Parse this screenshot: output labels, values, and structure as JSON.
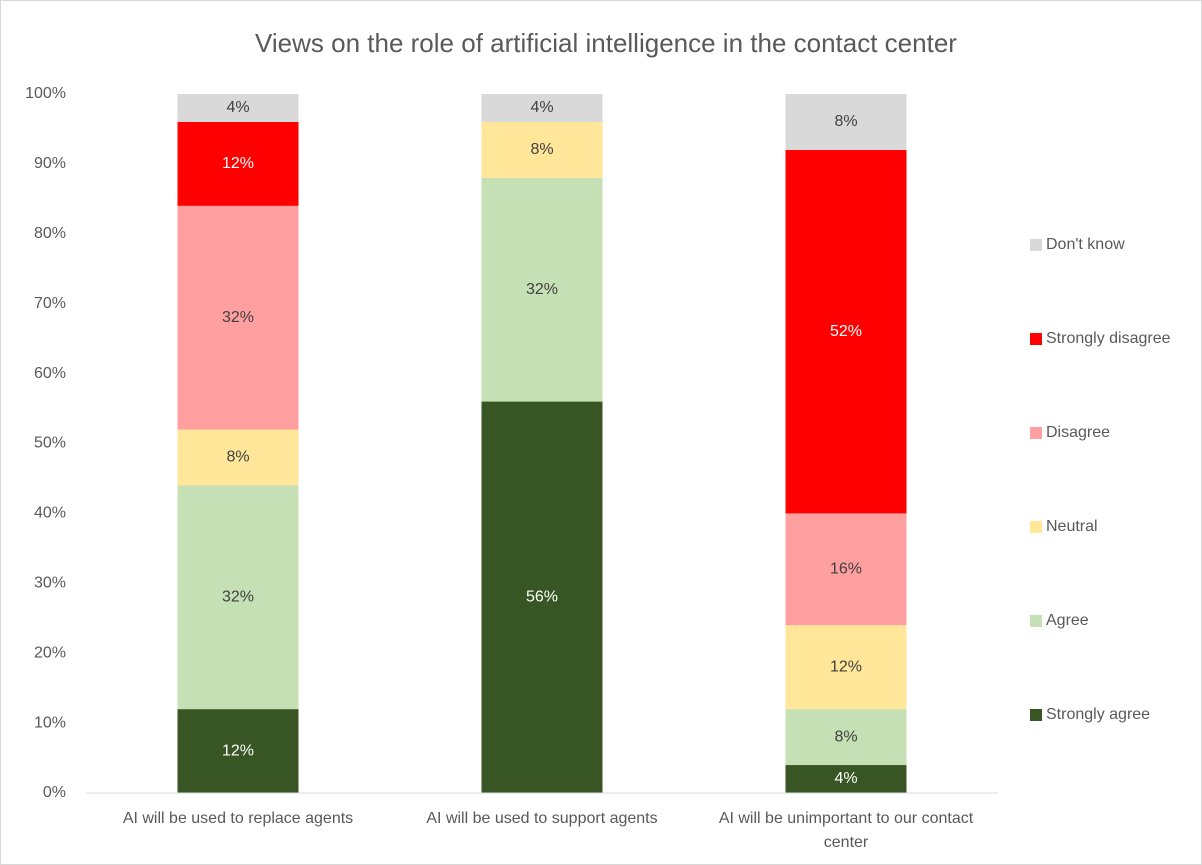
{
  "chart_data": {
    "type": "stacked_bar",
    "title": "Views on the role of artificial intelligence in the contact center",
    "categories": [
      "AI will be used to replace agents",
      "AI will be used to support agents",
      "AI will be unimportant to our contact center"
    ],
    "series": [
      {
        "name": "Strongly agree",
        "color": "#375623",
        "values": [
          12,
          56,
          4
        ],
        "value_labels": [
          "12%",
          "56%",
          "4%"
        ]
      },
      {
        "name": "Agree",
        "color": "#c5e0b4",
        "values": [
          32,
          32,
          8
        ],
        "value_labels": [
          "32%",
          "32%",
          "8%"
        ]
      },
      {
        "name": "Neutral",
        "color": "#ffe699",
        "values": [
          8,
          8,
          12
        ],
        "value_labels": [
          "8%",
          "8%",
          "12%"
        ]
      },
      {
        "name": "Disagree",
        "color": "#ff9f9f",
        "values": [
          32,
          0,
          16
        ],
        "value_labels": [
          "32%",
          null,
          "16%"
        ]
      },
      {
        "name": "Strongly disagree",
        "color": "#ff0000",
        "values": [
          12,
          0,
          52
        ],
        "value_labels": [
          "12%",
          null,
          "52%"
        ]
      },
      {
        "name": "Don't know",
        "color": "#d9d9d9",
        "values": [
          4,
          4,
          8
        ],
        "value_labels": [
          "4%",
          "4%",
          "8%"
        ]
      }
    ],
    "ylim": [
      0,
      100
    ],
    "yticks": [
      {
        "value": 0,
        "label": "0%"
      },
      {
        "value": 10,
        "label": "10%"
      },
      {
        "value": 20,
        "label": "20%"
      },
      {
        "value": 30,
        "label": "30%"
      },
      {
        "value": 40,
        "label": "40%"
      },
      {
        "value": 50,
        "label": "50%"
      },
      {
        "value": 60,
        "label": "60%"
      },
      {
        "value": 70,
        "label": "70%"
      },
      {
        "value": 80,
        "label": "80%"
      },
      {
        "value": 90,
        "label": "90%"
      },
      {
        "value": 100,
        "label": "100%"
      }
    ],
    "legend": "right"
  }
}
